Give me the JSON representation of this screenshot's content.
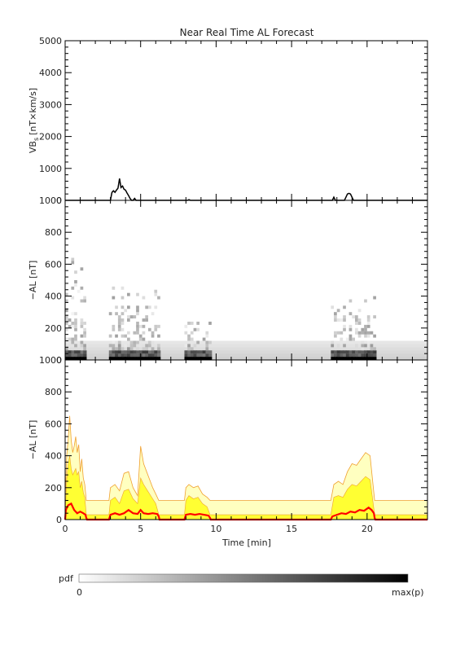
{
  "title": "Near Real Time AL Forecast",
  "x_axis_label": "Time [min]",
  "colorbar": {
    "label": "pdf",
    "min_label": "0",
    "max_label": "max(p)"
  },
  "chart_data": [
    {
      "panel": "vbs",
      "type": "line",
      "ylabel_main": "VB",
      "ylabel_sub": "s",
      "ylabel_units": "[nT×km/s]",
      "xlim": [
        0,
        24
      ],
      "ylim": [
        0,
        5000
      ],
      "x_ticks": [
        0,
        5,
        10,
        15,
        20
      ],
      "y_ticks": [
        0,
        1000,
        2000,
        3000,
        4000,
        5000
      ],
      "grid": false,
      "x": [
        0,
        3.0,
        3.1,
        3.2,
        3.3,
        3.4,
        3.5,
        3.6,
        3.7,
        3.8,
        3.9,
        4.0,
        4.1,
        4.2,
        4.3,
        4.4,
        4.5,
        4.6,
        4.7,
        4.8,
        4.9,
        5.0,
        8.1,
        8.2,
        8.3,
        17.7,
        17.8,
        17.9,
        18.0,
        18.5,
        18.6,
        18.7,
        18.8,
        18.9,
        19.0,
        19.1,
        19.2,
        24
      ],
      "y": [
        0,
        0,
        250,
        300,
        250,
        320,
        380,
        680,
        400,
        450,
        350,
        320,
        230,
        150,
        60,
        0,
        0,
        60,
        0,
        0,
        0,
        0,
        0,
        20,
        0,
        0,
        100,
        0,
        0,
        0,
        100,
        200,
        220,
        200,
        100,
        0,
        0,
        0
      ]
    },
    {
      "panel": "al_pdf",
      "type": "heatmap",
      "ylabel": "−AL [nT]",
      "xlim": [
        0,
        24
      ],
      "ylim": [
        0,
        1000
      ],
      "x_ticks": [
        0,
        5,
        10,
        15,
        20
      ],
      "y_ticks": [
        0,
        200,
        400,
        600,
        800,
        1000
      ],
      "grid": false,
      "background_band": {
        "x": [
          0,
          24
        ],
        "y": [
          0,
          120
        ]
      },
      "active_intervals": [
        {
          "x": [
            0,
            1.4
          ],
          "ymax": 650
        },
        {
          "x": [
            2.9,
            6.2
          ],
          "ymax": 450
        },
        {
          "x": [
            7.9,
            9.6
          ],
          "ymax": 230
        },
        {
          "x": [
            17.6,
            20.5
          ],
          "ymax": 400
        }
      ]
    },
    {
      "panel": "al_forecast",
      "type": "area",
      "ylabel": "−AL [nT]",
      "xlim": [
        0,
        24
      ],
      "ylim": [
        0,
        1000
      ],
      "x_ticks": [
        0,
        5,
        10,
        15,
        20
      ],
      "y_ticks": [
        0,
        200,
        400,
        600,
        800,
        1000
      ],
      "grid": false,
      "colors": {
        "outer": "#ffffc0",
        "inner": "#ffff33",
        "contour": "#f0a030",
        "median": "#ff0000"
      },
      "band_outer": {
        "x": [
          0,
          24
        ],
        "y": [
          0,
          120
        ]
      },
      "band_inner": {
        "x": [
          0,
          24
        ],
        "y": [
          0,
          30
        ]
      },
      "upper_envelope": {
        "x": [
          0,
          0.1,
          0.2,
          0.3,
          0.4,
          0.5,
          0.6,
          0.7,
          0.8,
          0.9,
          1.0,
          1.1,
          1.2,
          1.3,
          1.4,
          2.9,
          3.0,
          3.3,
          3.6,
          3.9,
          4.2,
          4.5,
          4.8,
          5.0,
          5.2,
          5.4,
          5.6,
          5.8,
          6.0,
          6.2,
          7.9,
          8.0,
          8.2,
          8.5,
          8.8,
          9.1,
          9.4,
          9.6,
          17.6,
          17.8,
          18.1,
          18.4,
          18.7,
          19.0,
          19.3,
          19.6,
          19.9,
          20.2,
          20.5,
          24
        ],
        "y": [
          120,
          400,
          500,
          650,
          500,
          420,
          460,
          520,
          420,
          470,
          300,
          380,
          260,
          220,
          120,
          120,
          200,
          220,
          180,
          290,
          300,
          200,
          150,
          460,
          350,
          300,
          250,
          200,
          160,
          120,
          120,
          200,
          220,
          200,
          210,
          160,
          140,
          120,
          120,
          220,
          240,
          220,
          300,
          350,
          340,
          380,
          420,
          400,
          120,
          120
        ]
      },
      "inner_envelope": {
        "x": [
          0,
          0.1,
          0.2,
          0.3,
          0.4,
          0.5,
          0.6,
          0.7,
          0.8,
          0.9,
          1.0,
          1.1,
          1.2,
          1.3,
          1.4,
          2.9,
          3.0,
          3.3,
          3.6,
          3.9,
          4.2,
          4.5,
          4.8,
          5.0,
          5.2,
          5.4,
          5.6,
          5.8,
          6.0,
          6.2,
          7.9,
          8.0,
          8.2,
          8.5,
          8.8,
          9.1,
          9.4,
          9.6,
          17.6,
          17.8,
          18.1,
          18.4,
          18.7,
          19.0,
          19.3,
          19.6,
          19.9,
          20.2,
          20.5,
          24
        ],
        "y": [
          30,
          250,
          350,
          400,
          320,
          280,
          300,
          320,
          280,
          300,
          200,
          240,
          170,
          140,
          30,
          30,
          120,
          140,
          100,
          180,
          190,
          130,
          100,
          260,
          220,
          190,
          160,
          130,
          100,
          30,
          30,
          120,
          150,
          130,
          140,
          100,
          80,
          30,
          30,
          140,
          150,
          140,
          190,
          220,
          210,
          240,
          270,
          250,
          30,
          30
        ]
      },
      "median": {
        "x": [
          0,
          0.05,
          0.2,
          0.4,
          0.6,
          0.8,
          1.0,
          1.2,
          1.35,
          1.4,
          1.45,
          2.9,
          3.0,
          3.3,
          3.6,
          3.9,
          4.2,
          4.5,
          4.8,
          5.0,
          5.2,
          5.5,
          5.8,
          6.1,
          6.2,
          6.25,
          7.9,
          8.0,
          8.3,
          8.6,
          8.9,
          9.2,
          9.5,
          9.6,
          9.65,
          17.6,
          17.7,
          18.0,
          18.3,
          18.6,
          18.9,
          19.2,
          19.5,
          19.8,
          20.1,
          20.3,
          20.45,
          20.5,
          20.55,
          24
        ],
        "y": [
          0,
          60,
          90,
          100,
          60,
          40,
          50,
          40,
          30,
          10,
          0,
          0,
          30,
          40,
          30,
          40,
          60,
          40,
          35,
          60,
          40,
          35,
          40,
          35,
          20,
          0,
          0,
          30,
          35,
          30,
          35,
          30,
          25,
          10,
          0,
          0,
          20,
          30,
          40,
          35,
          50,
          45,
          60,
          55,
          75,
          60,
          40,
          10,
          0,
          0
        ]
      }
    }
  ]
}
